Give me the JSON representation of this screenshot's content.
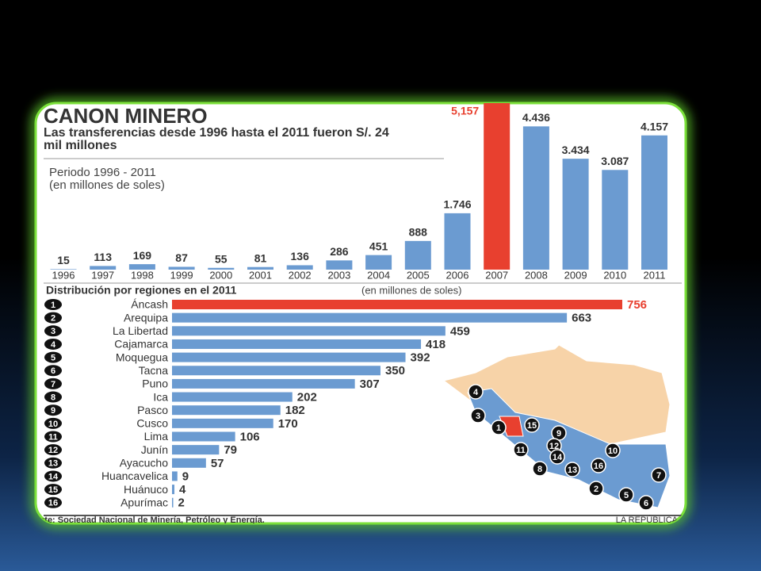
{
  "chart_data": [
    {
      "type": "bar",
      "title": "CANON MINERO",
      "subtitle": "Las transferencias desde 1996 hasta el 2011 fueron S/. 24 mil millones",
      "period": "Periodo 1996 - 2011",
      "unit": "(en millones de soles)",
      "categories": [
        "1996",
        "1997",
        "1998",
        "1999",
        "2000",
        "2001",
        "2002",
        "2003",
        "2004",
        "2005",
        "2006",
        "2007",
        "2008",
        "2009",
        "2010",
        "2011"
      ],
      "values": [
        15,
        113,
        169,
        87,
        55,
        81,
        136,
        286,
        451,
        888,
        1746,
        5157,
        4436,
        3434,
        3087,
        4157
      ],
      "value_labels": [
        "15",
        "113",
        "169",
        "87",
        "55",
        "81",
        "136",
        "286",
        "451",
        "888",
        "1.746",
        "5,157",
        "4.436",
        "3.434",
        "3.087",
        "4.157"
      ],
      "colors": [
        "#6b9bd1",
        "#6b9bd1",
        "#6b9bd1",
        "#6b9bd1",
        "#6b9bd1",
        "#6b9bd1",
        "#6b9bd1",
        "#6b9bd1",
        "#6b9bd1",
        "#6b9bd1",
        "#6b9bd1",
        "#e8402f",
        "#6b9bd1",
        "#6b9bd1",
        "#6b9bd1",
        "#6b9bd1"
      ]
    },
    {
      "type": "hbar",
      "title": "Distribución por regiones en el 2011",
      "unit": "(en millones de soles)",
      "ranks": [
        1,
        2,
        3,
        4,
        5,
        6,
        7,
        8,
        9,
        10,
        11,
        12,
        13,
        14,
        15,
        16
      ],
      "categories": [
        "Áncash",
        "Arequipa",
        "La Libertad",
        "Cajamarca",
        "Moquegua",
        "Tacna",
        "Puno",
        "Ica",
        "Pasco",
        "Cusco",
        "Lima",
        "Junín",
        "Ayacucho",
        "Huancavelica",
        "Huánuco",
        "Apurímac"
      ],
      "values": [
        756,
        663,
        459,
        418,
        392,
        350,
        307,
        202,
        182,
        170,
        106,
        79,
        57,
        9,
        4,
        2
      ],
      "colors": [
        "#e8402f",
        "#6b9bd1",
        "#6b9bd1",
        "#6b9bd1",
        "#6b9bd1",
        "#6b9bd1",
        "#6b9bd1",
        "#6b9bd1",
        "#6b9bd1",
        "#6b9bd1",
        "#6b9bd1",
        "#6b9bd1",
        "#6b9bd1",
        "#6b9bd1",
        "#6b9bd1",
        "#6b9bd1"
      ],
      "map_markers": [
        "4",
        "3",
        "1",
        "15",
        "9",
        "12",
        "11",
        "10",
        "14",
        "16",
        "8",
        "13",
        "7",
        "2",
        "5",
        "6"
      ]
    }
  ],
  "source": "Fuente: Sociedad Nacional de Minería, Petróleo y Energía.",
  "credit": "LA REPÚBLICA"
}
